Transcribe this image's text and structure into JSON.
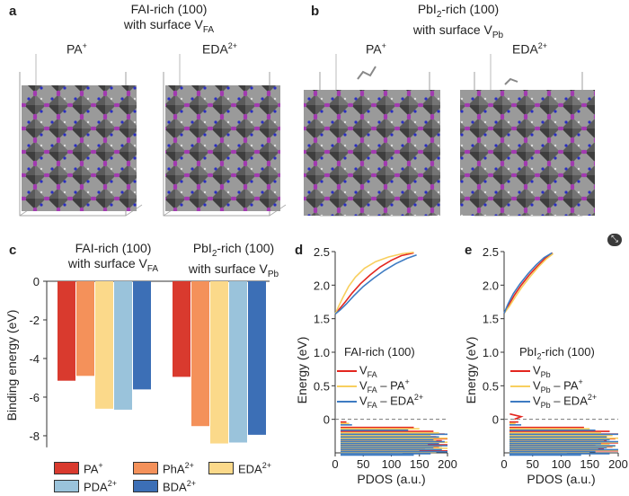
{
  "panel_a": {
    "label": "a",
    "title_line1": "FAI-rich (100)",
    "title_prefix": "with surface V",
    "title_sub": "FA",
    "struct_left_label": "PA",
    "struct_left_sup": "+",
    "struct_right_label": "EDA",
    "struct_right_sup": "2+"
  },
  "panel_b": {
    "label": "b",
    "title_line1_pre": "PbI",
    "title_line1_sub": "2",
    "title_line1_post": "-rich (100)",
    "title_prefix": "with surface V",
    "title_sub": "Pb",
    "struct_left_label": "PA",
    "struct_left_sup": "+",
    "struct_right_label": "EDA",
    "struct_right_sup": "2+"
  },
  "panel_c": {
    "label": "c",
    "group1_line1": "FAI-rich (100)",
    "group1_prefix": "with surface V",
    "group1_sub": "FA",
    "group2_line1_pre": "PbI",
    "group2_line1_sub": "2",
    "group2_line1_post": "-rich (100)",
    "group2_prefix": "with surface V",
    "group2_sub": "Pb",
    "legend": [
      {
        "name": "PA",
        "sup": "+",
        "color": "#d93a2e"
      },
      {
        "name": "PhA",
        "sup": "2+",
        "color": "#f4915a"
      },
      {
        "name": "EDA",
        "sup": "2+",
        "color": "#fbd98a"
      },
      {
        "name": "PDA",
        "sup": "2+",
        "color": "#9ac3db"
      },
      {
        "name": "BDA",
        "sup": "2+",
        "color": "#3c6fb6"
      }
    ]
  },
  "panel_d": {
    "label": "d",
    "title": "FAI-rich (100)",
    "legend": [
      {
        "main": "V",
        "sub": "FA",
        "tail": "",
        "tail_sup": "",
        "color": "#e3261f"
      },
      {
        "main": "V",
        "sub": "FA",
        "tail": " – PA",
        "tail_sup": "+",
        "color": "#f8cf5e"
      },
      {
        "main": "V",
        "sub": "FA",
        "tail": " – EDA",
        "tail_sup": "2+",
        "color": "#3e7bc2"
      }
    ]
  },
  "panel_e": {
    "label": "e",
    "title_pre": "PbI",
    "title_sub": "2",
    "title_post": "-rich (100)",
    "legend": [
      {
        "main": "V",
        "sub": "Pb",
        "tail": "",
        "tail_sup": "",
        "color": "#e3261f"
      },
      {
        "main": "V",
        "sub": "Pb",
        "tail": " – PA",
        "tail_sup": "+",
        "color": "#f8cf5e"
      },
      {
        "main": "V",
        "sub": "Pb",
        "tail": " – EDA",
        "tail_sup": "2+",
        "color": "#3e7bc2"
      }
    ]
  },
  "chart_data": [
    {
      "id": "c",
      "type": "bar",
      "ylabel": "Binding energy (eV)",
      "ylim": [
        -8.7,
        0
      ],
      "yticks": [
        0,
        -2,
        -4,
        -6,
        -8
      ],
      "groups": [
        "FAI-rich (100) with surface VFA",
        "PbI2-rich (100) with surface VPb"
      ],
      "series": [
        {
          "name": "PA+",
          "values": [
            -5.15,
            -4.95
          ]
        },
        {
          "name": "PhA2+",
          "values": [
            -4.9,
            -7.5
          ]
        },
        {
          "name": "EDA2+",
          "values": [
            -6.6,
            -8.4
          ]
        },
        {
          "name": "PDA2+",
          "values": [
            -6.65,
            -8.35
          ]
        },
        {
          "name": "BDA2+",
          "values": [
            -5.6,
            -7.95
          ]
        }
      ]
    },
    {
      "id": "d",
      "type": "line",
      "xlabel": "PDOS (a.u.)",
      "ylabel": "Energy (eV)",
      "xlim": [
        0,
        200
      ],
      "ylim": [
        -0.5,
        2.5
      ],
      "xticks": [
        0,
        50,
        100,
        150,
        200
      ],
      "yticks": [
        0,
        0.5,
        1.0,
        1.5,
        2.0,
        2.5
      ],
      "series": [
        {
          "name": "VFA",
          "x": [
            0,
            8,
            18,
            30,
            45,
            62,
            80,
            100,
            118,
            140
          ],
          "y": [
            1.57,
            1.65,
            1.75,
            1.88,
            2.02,
            2.15,
            2.27,
            2.37,
            2.44,
            2.48
          ]
        },
        {
          "name": "VFA – PA+",
          "x": [
            0,
            6,
            14,
            24,
            36,
            52,
            72,
            95,
            120,
            140
          ],
          "y": [
            1.57,
            1.68,
            1.82,
            1.98,
            2.12,
            2.25,
            2.35,
            2.42,
            2.47,
            2.49
          ]
        },
        {
          "name": "VFA – EDA2+",
          "x": [
            0,
            9,
            20,
            33,
            50,
            68,
            88,
            108,
            128,
            145
          ],
          "y": [
            1.57,
            1.63,
            1.72,
            1.84,
            1.98,
            2.1,
            2.22,
            2.32,
            2.4,
            2.45
          ]
        }
      ],
      "valence_traces": {
        "rows": [
          -0.04,
          -0.12,
          -0.18,
          -0.22,
          -0.26,
          -0.29,
          -0.32,
          -0.35,
          -0.38,
          -0.41,
          -0.44,
          -0.47,
          -0.49
        ],
        "VFA": [
          20,
          140,
          175,
          195,
          180,
          200,
          190,
          170,
          200,
          185,
          160,
          200,
          130
        ],
        "VFA – PA+": [
          25,
          150,
          185,
          170,
          200,
          180,
          200,
          165,
          190,
          200,
          150,
          180,
          120
        ],
        "VFA – EDA2+": [
          30,
          130,
          200,
          185,
          175,
          195,
          185,
          200,
          175,
          190,
          200,
          170,
          140
        ]
      },
      "fermi_level": 0
    },
    {
      "id": "e",
      "type": "line",
      "xlabel": "PDOS (a.u.)",
      "ylabel": "Energy (eV)",
      "xlim": [
        0,
        200
      ],
      "ylim": [
        -0.5,
        2.5
      ],
      "xticks": [
        0,
        50,
        100,
        150,
        200
      ],
      "yticks": [
        0,
        0.5,
        1.0,
        1.5,
        2.0,
        2.5
      ],
      "series": [
        {
          "name": "VPb",
          "x": [
            0,
            8,
            18,
            30,
            44,
            58,
            72,
            85
          ],
          "y": [
            1.58,
            1.7,
            1.85,
            2.0,
            2.15,
            2.28,
            2.4,
            2.48
          ]
        },
        {
          "name": "VPb – PA+",
          "x": [
            0,
            9,
            20,
            32,
            46,
            60,
            74,
            86
          ],
          "y": [
            1.58,
            1.68,
            1.83,
            1.98,
            2.13,
            2.27,
            2.39,
            2.47
          ]
        },
        {
          "name": "VPb – EDA2+",
          "x": [
            0,
            7,
            16,
            28,
            42,
            56,
            70,
            84
          ],
          "y": [
            1.58,
            1.72,
            1.87,
            2.02,
            2.17,
            2.3,
            2.41,
            2.48
          ]
        }
      ],
      "valence_traces": {
        "rows": [
          -0.04,
          -0.12,
          -0.18,
          -0.22,
          -0.26,
          -0.29,
          -0.32,
          -0.35,
          -0.38,
          -0.41,
          -0.44,
          -0.47,
          -0.49
        ],
        "VPb": [
          25,
          140,
          185,
          200,
          170,
          195,
          180,
          200,
          160,
          190,
          175,
          200,
          120
        ],
        "VPb – PA+": [
          20,
          150,
          170,
          190,
          200,
          175,
          200,
          185,
          195,
          165,
          200,
          150,
          110
        ],
        "VPb – EDA2+": [
          30,
          160,
          200,
          180,
          185,
          200,
          170,
          195,
          180,
          200,
          160,
          185,
          135
        ]
      },
      "fermi_level": 0,
      "pre_fermi": {
        "x": [
          10,
          30,
          18
        ],
        "y": [
          0.08,
          0.04,
          0.0
        ]
      }
    }
  ]
}
